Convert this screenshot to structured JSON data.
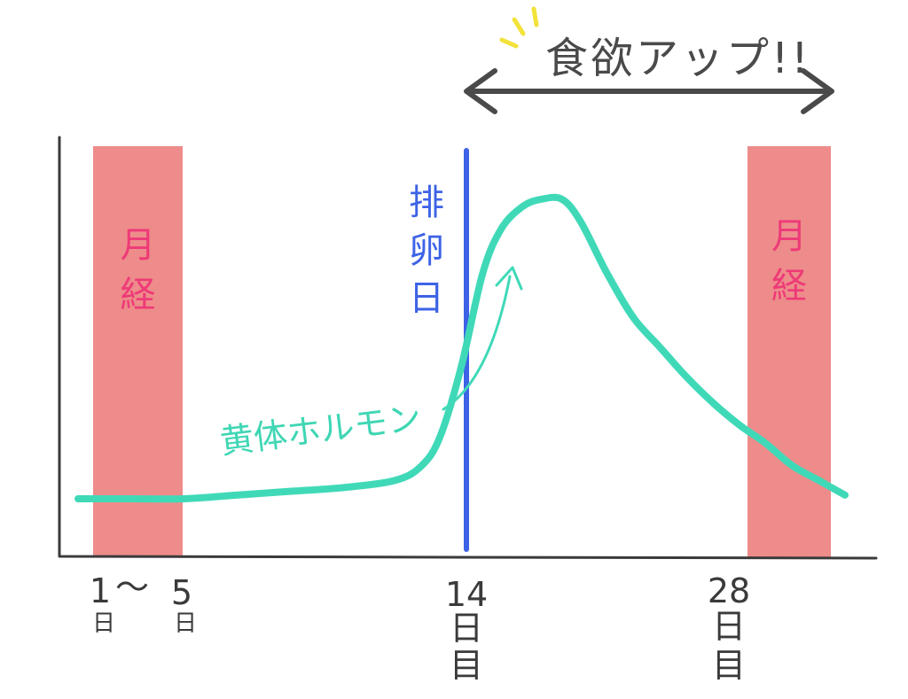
{
  "chart_data": {
    "type": "line",
    "title": "",
    "xlabel": "",
    "ylabel": "",
    "xlim": [
      1,
      31
    ],
    "ylim": [
      0,
      100
    ],
    "grid": false,
    "series": [
      {
        "name": "黄体ホルモン",
        "color": "#40d9b8",
        "x": [
          1,
          3,
          5,
          7,
          9,
          11,
          13,
          14,
          14.7,
          15.5,
          16.3,
          17,
          17.8,
          18.5,
          19.3,
          20,
          21,
          22,
          23,
          24,
          25,
          26,
          27,
          28,
          29,
          30
        ],
        "y": [
          9,
          9,
          9,
          10,
          11,
          12,
          14,
          18,
          26,
          45,
          70,
          82,
          88,
          90,
          90,
          84,
          70,
          58,
          50,
          42,
          35,
          29,
          24,
          18,
          14,
          10
        ]
      }
    ],
    "bands": [
      {
        "label": "月経",
        "start": 2,
        "end": 5.5,
        "color": "#ed8c8a"
      },
      {
        "label": "月経",
        "start": 28.5,
        "end": 31,
        "color": "#ed8c8a"
      }
    ],
    "markers": [
      {
        "label": "排卵日",
        "x": 14,
        "color": "#3d63e6"
      }
    ],
    "x_ticks": [
      {
        "label_top": "1",
        "label_bottom": "日",
        "x": 2
      },
      {
        "label_top": "～",
        "label_bottom": "",
        "x": 3.5
      },
      {
        "label_top": "5",
        "label_bottom": "日",
        "x": 5.3
      },
      {
        "label_top": "14",
        "label_bottom": "日",
        "label_bottom2": "目",
        "x": 14
      },
      {
        "label_top": "28",
        "label_bottom": "日",
        "label_bottom2": "目",
        "x": 28
      }
    ],
    "annotations": [
      {
        "text": "食欲アップ!!",
        "type": "double-arrow",
        "from": 14,
        "to": 31,
        "color": "#4a4a4a"
      }
    ]
  }
}
